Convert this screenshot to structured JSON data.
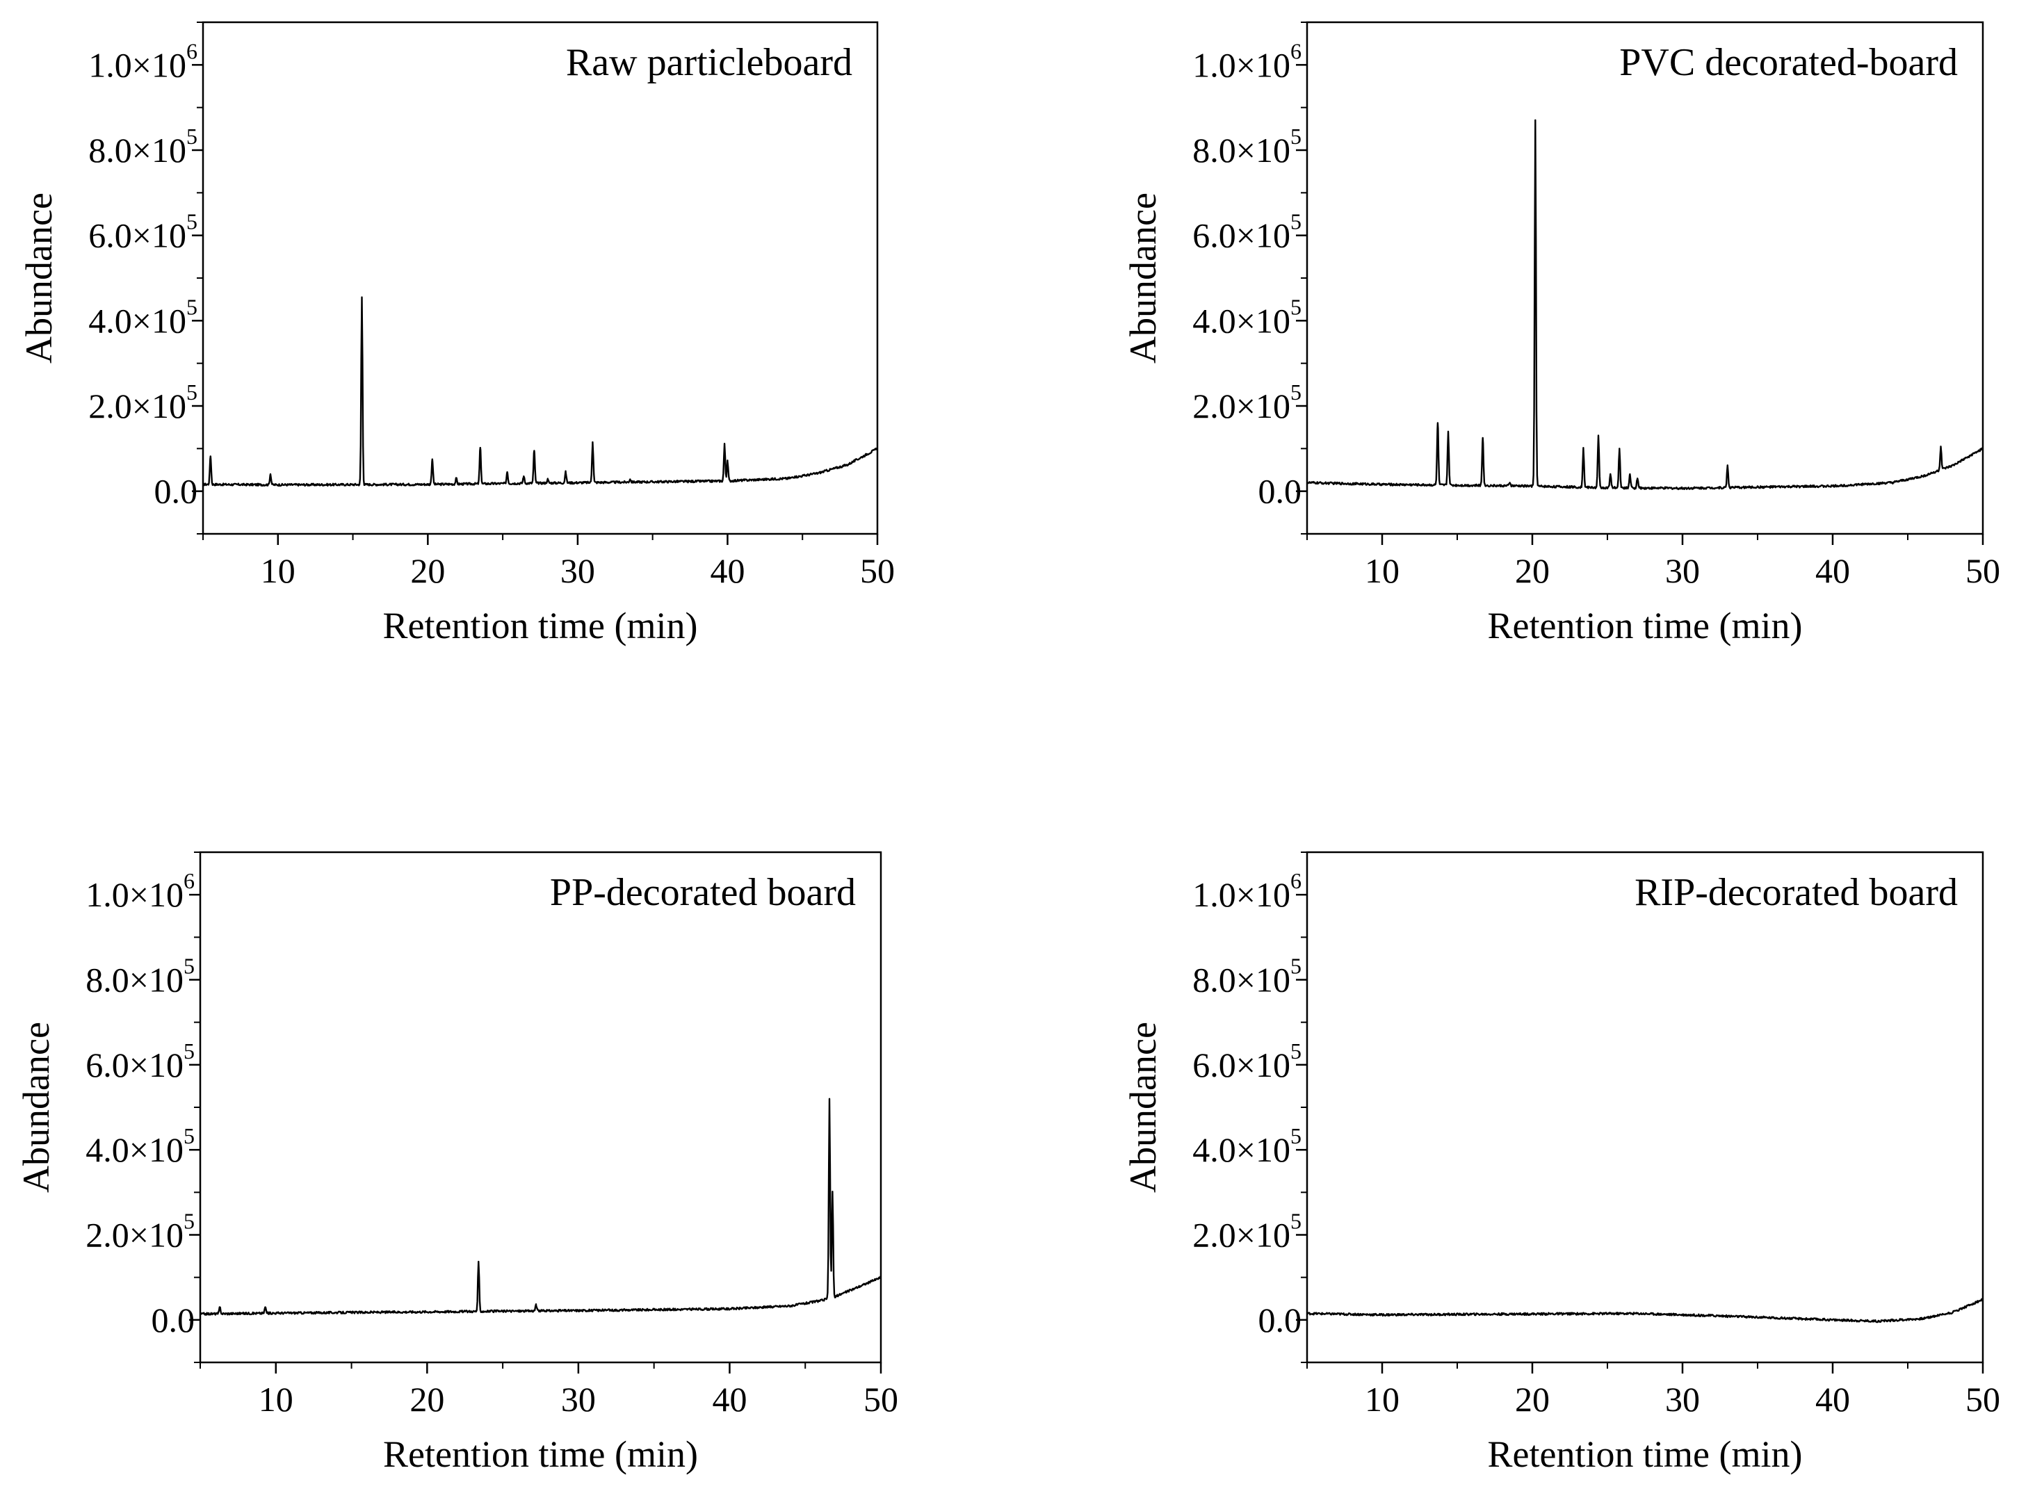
{
  "chart_data": [
    {
      "type": "line",
      "title": "Raw particleboard",
      "xlabel": "Retention time (min)",
      "ylabel": "Abundance",
      "xlim": [
        5,
        50
      ],
      "ylim": [
        -100000,
        1100000
      ],
      "xticks": [
        10,
        20,
        30,
        40,
        50
      ],
      "xtick_labels": [
        "10",
        "20",
        "30",
        "40",
        "50"
      ],
      "yticks": [
        0,
        200000,
        400000,
        600000,
        800000,
        1000000
      ],
      "ytick_labels": [
        {
          "base": "0.0",
          "exp": ""
        },
        {
          "base": "2.0×10",
          "exp": "5"
        },
        {
          "base": "4.0×10",
          "exp": "5"
        },
        {
          "base": "6.0×10",
          "exp": "5"
        },
        {
          "base": "8.0×10",
          "exp": "5"
        },
        {
          "base": "1.0×10",
          "exp": "6"
        }
      ],
      "baseline": [
        [
          5,
          16000
        ],
        [
          10,
          15000
        ],
        [
          20,
          16000
        ],
        [
          30,
          20000
        ],
        [
          40,
          24000
        ],
        [
          44,
          30000
        ],
        [
          46,
          42000
        ],
        [
          48,
          62000
        ],
        [
          50,
          100000
        ]
      ],
      "peaks": [
        [
          5.5,
          82000
        ],
        [
          9.5,
          40000
        ],
        [
          15.6,
          455000
        ],
        [
          20.3,
          75000
        ],
        [
          21.9,
          30000
        ],
        [
          23.5,
          102000
        ],
        [
          25.3,
          45000
        ],
        [
          26.4,
          35000
        ],
        [
          27.1,
          95000
        ],
        [
          28.0,
          28000
        ],
        [
          29.2,
          45000
        ],
        [
          31.0,
          115000
        ],
        [
          33.5,
          28000
        ],
        [
          39.8,
          110000
        ],
        [
          40.0,
          70000
        ],
        [
          44.5,
          35000
        ]
      ]
    },
    {
      "type": "line",
      "title": "PVC decorated-board",
      "xlabel": "Retention time (min)",
      "ylabel": "Abundance",
      "xlim": [
        5,
        50
      ],
      "ylim": [
        -100000,
        1100000
      ],
      "xticks": [
        10,
        20,
        30,
        40,
        50
      ],
      "xtick_labels": [
        "10",
        "20",
        "30",
        "40",
        "50"
      ],
      "yticks": [
        0,
        200000,
        400000,
        600000,
        800000,
        1000000
      ],
      "ytick_labels": [
        {
          "base": "0.0",
          "exp": ""
        },
        {
          "base": "2.0×10",
          "exp": "5"
        },
        {
          "base": "4.0×10",
          "exp": "5"
        },
        {
          "base": "6.0×10",
          "exp": "5"
        },
        {
          "base": "8.0×10",
          "exp": "5"
        },
        {
          "base": "1.0×10",
          "exp": "6"
        }
      ],
      "baseline": [
        [
          5,
          20000
        ],
        [
          10,
          16000
        ],
        [
          15,
          14000
        ],
        [
          20,
          12000
        ],
        [
          25,
          8000
        ],
        [
          30,
          7000
        ],
        [
          40,
          12000
        ],
        [
          44,
          20000
        ],
        [
          46,
          35000
        ],
        [
          48,
          60000
        ],
        [
          50,
          100000
        ]
      ],
      "peaks": [
        [
          13.7,
          160000
        ],
        [
          14.4,
          140000
        ],
        [
          16.7,
          125000
        ],
        [
          18.5,
          20000
        ],
        [
          20.2,
          870000
        ],
        [
          23.4,
          100000
        ],
        [
          24.4,
          130000
        ],
        [
          25.2,
          40000
        ],
        [
          25.8,
          100000
        ],
        [
          26.5,
          40000
        ],
        [
          27.0,
          30000
        ],
        [
          33.0,
          60000
        ],
        [
          47.2,
          105000
        ]
      ]
    },
    {
      "type": "line",
      "title": "PP-decorated board",
      "xlabel": "Retention time (min)",
      "ylabel": "Abundance",
      "xlim": [
        5,
        50
      ],
      "ylim": [
        -100000,
        1100000
      ],
      "xticks": [
        10,
        20,
        30,
        40,
        50
      ],
      "xtick_labels": [
        "10",
        "20",
        "30",
        "40",
        "50"
      ],
      "yticks": [
        0,
        200000,
        400000,
        600000,
        800000,
        1000000
      ],
      "ytick_labels": [
        {
          "base": "0.0",
          "exp": ""
        },
        {
          "base": "2.0×10",
          "exp": "5"
        },
        {
          "base": "4.0×10",
          "exp": "5"
        },
        {
          "base": "6.0×10",
          "exp": "5"
        },
        {
          "base": "8.0×10",
          "exp": "5"
        },
        {
          "base": "1.0×10",
          "exp": "6"
        }
      ],
      "baseline": [
        [
          5,
          14000
        ],
        [
          10,
          16000
        ],
        [
          20,
          19000
        ],
        [
          30,
          22000
        ],
        [
          40,
          26000
        ],
        [
          44,
          33000
        ],
        [
          46,
          45000
        ],
        [
          47,
          55000
        ],
        [
          48,
          70000
        ],
        [
          50,
          100000
        ]
      ],
      "peaks": [
        [
          6.3,
          30000
        ],
        [
          9.3,
          30000
        ],
        [
          23.4,
          135000
        ],
        [
          27.2,
          35000
        ],
        [
          46.6,
          520000
        ],
        [
          46.8,
          300000
        ]
      ]
    },
    {
      "type": "line",
      "title": "RIP-decorated board",
      "xlabel": "Retention time (min)",
      "ylabel": "Abundance",
      "xlim": [
        5,
        50
      ],
      "ylim": [
        -100000,
        1100000
      ],
      "xticks": [
        10,
        20,
        30,
        40,
        50
      ],
      "xtick_labels": [
        "10",
        "20",
        "30",
        "40",
        "50"
      ],
      "yticks": [
        0,
        200000,
        400000,
        600000,
        800000,
        1000000
      ],
      "ytick_labels": [
        {
          "base": "0.0",
          "exp": ""
        },
        {
          "base": "2.0×10",
          "exp": "5"
        },
        {
          "base": "4.0×10",
          "exp": "5"
        },
        {
          "base": "6.0×10",
          "exp": "5"
        },
        {
          "base": "8.0×10",
          "exp": "5"
        },
        {
          "base": "1.0×10",
          "exp": "6"
        }
      ],
      "baseline": [
        [
          5,
          15000
        ],
        [
          10,
          12000
        ],
        [
          20,
          14000
        ],
        [
          27,
          15000
        ],
        [
          32,
          10000
        ],
        [
          36,
          5000
        ],
        [
          40,
          0
        ],
        [
          43,
          -3000
        ],
        [
          46,
          3000
        ],
        [
          48,
          18000
        ],
        [
          50,
          48000
        ]
      ],
      "peaks": []
    }
  ]
}
